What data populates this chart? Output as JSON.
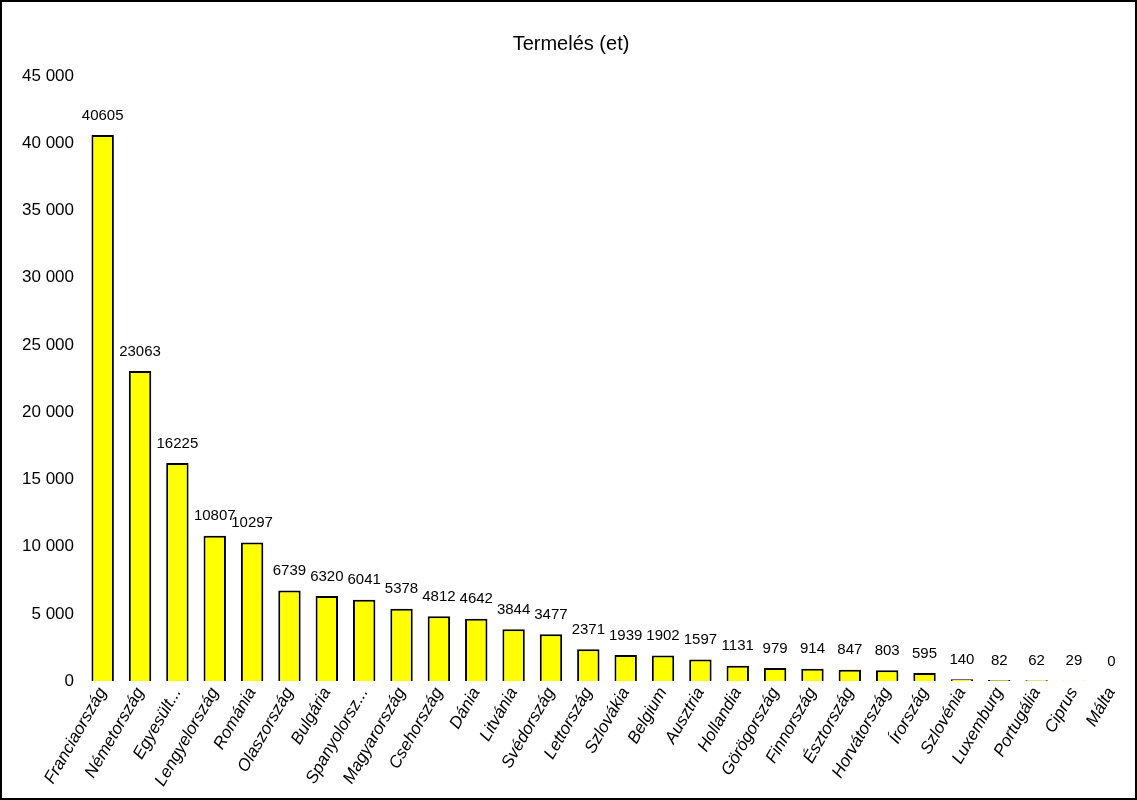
{
  "chart_data": {
    "type": "bar",
    "title": "Termelés (et)",
    "categories": [
      "Franciaország",
      "Németország",
      "Egyesült...",
      "Lengyelország",
      "Románia",
      "Olaszország",
      "Bulgária",
      "Spanyolorsz...",
      "Magyarország",
      "Csehország",
      "Dánia",
      "Litvánia",
      "Svédország",
      "Lettország",
      "Szlovákia",
      "Belgium",
      "Ausztria",
      "Hollandia",
      "Görögország",
      "Finnország",
      "Észtország",
      "Horvátország",
      "Írország",
      "Szlovénia",
      "Luxemburg",
      "Portugália",
      "Ciprus",
      "Málta"
    ],
    "values": [
      40605,
      23063,
      16225,
      10807,
      10297,
      6739,
      6320,
      6041,
      5378,
      4812,
      4642,
      3844,
      3477,
      2371,
      1939,
      1902,
      1597,
      1131,
      979,
      914,
      847,
      803,
      595,
      140,
      82,
      62,
      29,
      0
    ],
    "color": "#ffff00",
    "ylim": [
      0,
      45000
    ],
    "yticks": [
      {
        "value": 0,
        "label": "0"
      },
      {
        "value": 5000,
        "label": "5 000"
      },
      {
        "value": 10000,
        "label": "10 000"
      },
      {
        "value": 15000,
        "label": "15 000"
      },
      {
        "value": 20000,
        "label": "20 000"
      },
      {
        "value": 25000,
        "label": "25 000"
      },
      {
        "value": 30000,
        "label": "30 000"
      },
      {
        "value": 35000,
        "label": "35 000"
      },
      {
        "value": 40000,
        "label": "40 000"
      },
      {
        "value": 45000,
        "label": "45 000"
      }
    ],
    "grid": false,
    "legend": false,
    "data_labels": true
  }
}
